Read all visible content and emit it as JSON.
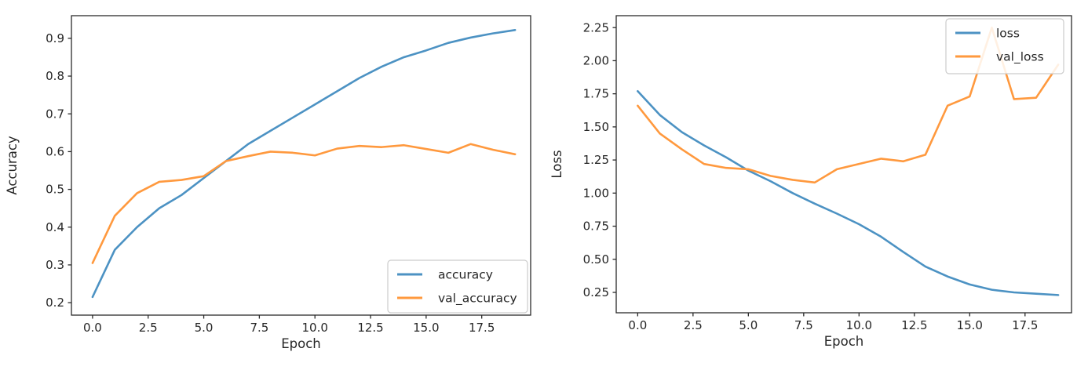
{
  "page": {
    "background": "#ffffff"
  },
  "colors": {
    "series1": "#4c92c3",
    "series2": "#ff993e",
    "spine": "#2b2b2b",
    "tick": "#2b2b2b",
    "text": "#262626",
    "legend_border": "#cccccc",
    "legend_fill": "#ffffff"
  },
  "chart_data": [
    {
      "type": "line",
      "title": "",
      "xlabel": "Epoch",
      "ylabel": "Accuracy",
      "x": [
        0,
        1,
        2,
        3,
        4,
        5,
        6,
        7,
        8,
        9,
        10,
        11,
        12,
        13,
        14,
        15,
        16,
        17,
        18,
        19
      ],
      "series": [
        {
          "name": "accuracy",
          "color_key": "series1",
          "values": [
            0.215,
            0.34,
            0.4,
            0.45,
            0.485,
            0.53,
            0.575,
            0.62,
            0.655,
            0.69,
            0.725,
            0.76,
            0.795,
            0.825,
            0.85,
            0.868,
            0.888,
            0.902,
            0.913,
            0.922
          ]
        },
        {
          "name": "val_accuracy",
          "color_key": "series2",
          "values": [
            0.305,
            0.43,
            0.49,
            0.52,
            0.525,
            0.535,
            0.575,
            0.588,
            0.6,
            0.597,
            0.59,
            0.608,
            0.615,
            0.612,
            0.617,
            0.607,
            0.597,
            0.62,
            0.605,
            0.593
          ]
        }
      ],
      "xticks": [
        0,
        2.5,
        5,
        7.5,
        10,
        12.5,
        15,
        17.5
      ],
      "xtick_labels": [
        "0.0",
        "2.5",
        "5.0",
        "7.5",
        "10.0",
        "12.5",
        "15.0",
        "17.5"
      ],
      "yticks": [
        0.2,
        0.3,
        0.4,
        0.5,
        0.6,
        0.7,
        0.8,
        0.9
      ],
      "ytick_labels": [
        "0.2",
        "0.3",
        "0.4",
        "0.5",
        "0.6",
        "0.7",
        "0.8",
        "0.9"
      ],
      "xlim": [
        -0.95,
        19.7
      ],
      "ylim": [
        0.167,
        0.96
      ],
      "grid": false,
      "legend_position": "lower right"
    },
    {
      "type": "line",
      "title": "",
      "xlabel": "Epoch",
      "ylabel": "Loss",
      "x": [
        0,
        1,
        2,
        3,
        4,
        5,
        6,
        7,
        8,
        9,
        10,
        11,
        12,
        13,
        14,
        15,
        16,
        17,
        18,
        19
      ],
      "series": [
        {
          "name": "loss",
          "color_key": "series1",
          "values": [
            1.77,
            1.59,
            1.46,
            1.36,
            1.27,
            1.17,
            1.09,
            1.0,
            0.92,
            0.845,
            0.765,
            0.67,
            0.555,
            0.445,
            0.37,
            0.31,
            0.27,
            0.25,
            0.24,
            0.23
          ]
        },
        {
          "name": "val_loss",
          "color_key": "series2",
          "values": [
            1.66,
            1.45,
            1.33,
            1.22,
            1.19,
            1.18,
            1.13,
            1.1,
            1.08,
            1.18,
            1.22,
            1.26,
            1.24,
            1.29,
            1.66,
            1.73,
            2.25,
            1.71,
            1.72,
            1.97
          ]
        }
      ],
      "xticks": [
        0,
        2.5,
        5,
        7.5,
        10,
        12.5,
        15,
        17.5
      ],
      "xtick_labels": [
        "0.0",
        "2.5",
        "5.0",
        "7.5",
        "10.0",
        "12.5",
        "15.0",
        "17.5"
      ],
      "yticks": [
        0.25,
        0.5,
        0.75,
        1.0,
        1.25,
        1.5,
        1.75,
        2.0,
        2.25
      ],
      "ytick_labels": [
        "0.25",
        "0.50",
        "0.75",
        "1.00",
        "1.25",
        "1.50",
        "1.75",
        "2.00",
        "2.25"
      ],
      "xlim": [
        -0.97,
        19.6
      ],
      "ylim": [
        0.096,
        2.34
      ],
      "grid": false,
      "legend_position": "upper right"
    }
  ]
}
